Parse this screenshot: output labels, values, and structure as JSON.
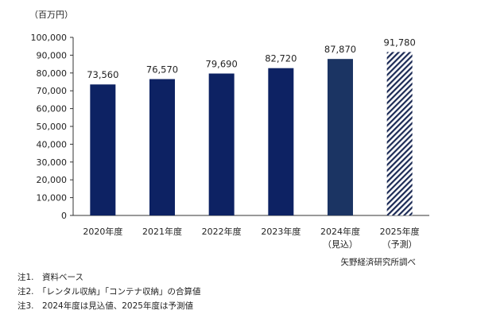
{
  "chart_data": {
    "type": "bar",
    "unit_label": "（百万円）",
    "categories": [
      [
        "2020年度"
      ],
      [
        "2021年度"
      ],
      [
        "2022年度"
      ],
      [
        "2023年度"
      ],
      [
        "2024年度",
        "（見込）"
      ],
      [
        "2025年度",
        "（予測）"
      ]
    ],
    "values": [
      73560,
      76570,
      79690,
      82720,
      87870,
      91780
    ],
    "value_labels": [
      "73,560",
      "76,570",
      "79,690",
      "82,720",
      "87,870",
      "91,780"
    ],
    "bar_styles": [
      "solid",
      "solid",
      "solid",
      "solid",
      "solid-estimate",
      "hatched-forecast"
    ],
    "y_ticks": [
      "0",
      "10,000",
      "20,000",
      "30,000",
      "40,000",
      "50,000",
      "60,000",
      "70,000",
      "80,000",
      "90,000",
      "100,000"
    ],
    "ylim": [
      0,
      100000
    ],
    "grid": false,
    "legend": "none",
    "source": "矢野経済研究所調べ",
    "colors": {
      "bar": "#0d2263",
      "bar_estimate": "#1b3463",
      "hatch": "#1b2a55",
      "axis": "#333333"
    }
  },
  "notes": [
    "注1.　資料ベース",
    "注2.　「レンタル収納」「コンテナ収納」の合算値",
    "注3.　2024年度は見込値、2025年度は予測値"
  ]
}
